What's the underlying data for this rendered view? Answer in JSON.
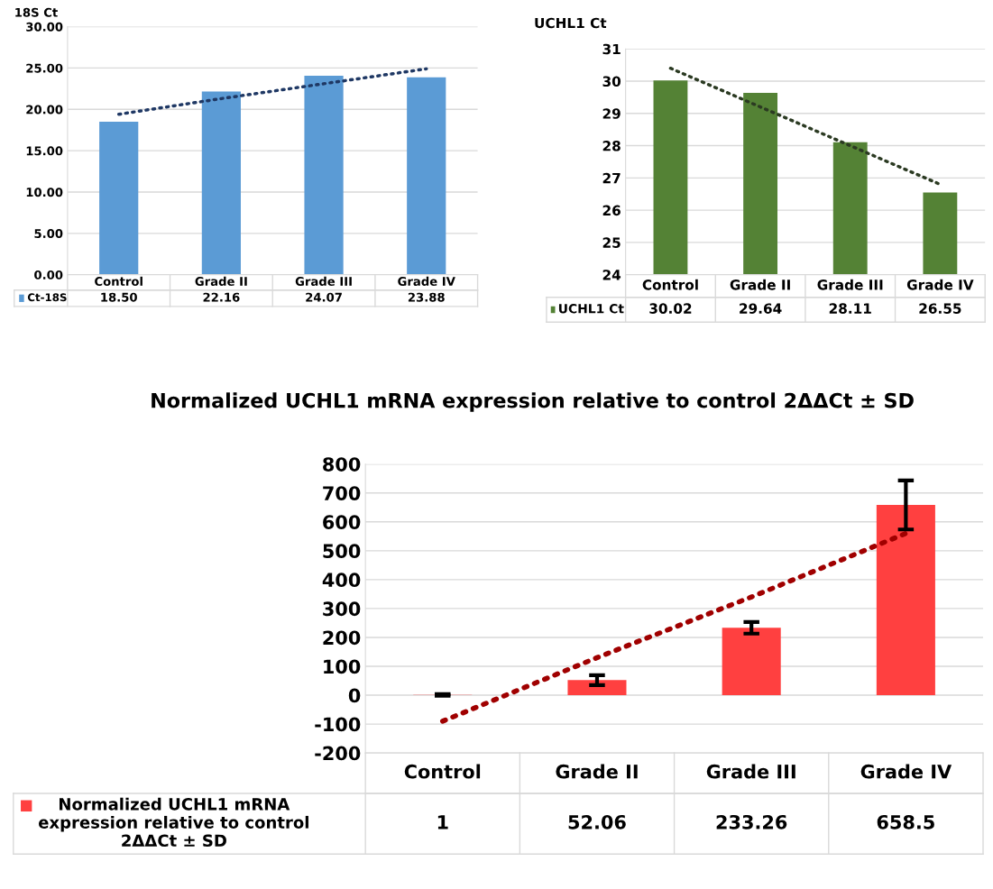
{
  "chart_data": [
    {
      "type": "bar",
      "ylabel": "18S Ct",
      "categories": [
        "Control",
        "Grade II",
        "Grade III",
        "Grade IV"
      ],
      "ylim": [
        0,
        30
      ],
      "yticks": [
        {
          "value": 0,
          "label": "0.00"
        },
        {
          "value": 5,
          "label": "5.00"
        },
        {
          "value": 10,
          "label": "10.00"
        },
        {
          "value": 15,
          "label": "15.00"
        },
        {
          "value": 20,
          "label": "20.00"
        },
        {
          "value": 25,
          "label": "25.00"
        },
        {
          "value": 30,
          "label": "30.00"
        }
      ],
      "grid": "y",
      "series": [
        {
          "name": "Ct-18S",
          "color": "#5b9bd5",
          "values": [
            18.5,
            22.16,
            24.07,
            23.88
          ],
          "value_labels": [
            "18.50",
            "22.16",
            "24.07",
            "23.88"
          ]
        },
        {
          "type": "line",
          "color": "#1f3864",
          "line_style": "dotted",
          "values": [
            19.4,
            21.3,
            23.1,
            24.9
          ]
        }
      ]
    },
    {
      "type": "bar",
      "ylabel": "UCHL1 Ct",
      "categories": [
        "Control",
        "Grade II",
        "Grade III",
        "Grade IV"
      ],
      "ylim": [
        24,
        31
      ],
      "yticks": [
        24,
        25,
        26,
        27,
        28,
        29,
        30,
        31
      ],
      "grid": "y",
      "series": [
        {
          "name": "UCHL1 Ct",
          "color": "#548235",
          "values": [
            30.02,
            29.64,
            28.11,
            26.55
          ],
          "value_labels": [
            "30.02",
            "29.64",
            "28.11",
            "26.55"
          ]
        },
        {
          "type": "line",
          "color": "#2b3a22",
          "line_style": "dotted",
          "values": [
            30.4,
            29.2,
            28.0,
            26.8
          ]
        }
      ]
    },
    {
      "type": "bar",
      "title": "Normalized UCHL1 mRNA expression relative to control 2ΔΔCt ± SD",
      "categories": [
        "Control",
        "Grade II",
        "Grade III",
        "Grade IV"
      ],
      "ylim": [
        -200,
        800
      ],
      "yticks": [
        -200,
        -100,
        0,
        100,
        200,
        300,
        400,
        500,
        600,
        700,
        800
      ],
      "grid": "y",
      "series": [
        {
          "name": "Normalized UCHL1 mRNA expression relative to control 2ΔΔCt ± SD",
          "color": "#ff4040",
          "values": [
            1,
            52.06,
            233.26,
            658.5
          ],
          "value_labels": [
            "1",
            "52.06",
            "233.26",
            "658.5"
          ],
          "errors": [
            3,
            17,
            20,
            85
          ]
        },
        {
          "type": "line",
          "color": "#a00000",
          "line_style": "dotted",
          "values": [
            -90,
            130,
            340,
            560
          ]
        }
      ]
    }
  ]
}
